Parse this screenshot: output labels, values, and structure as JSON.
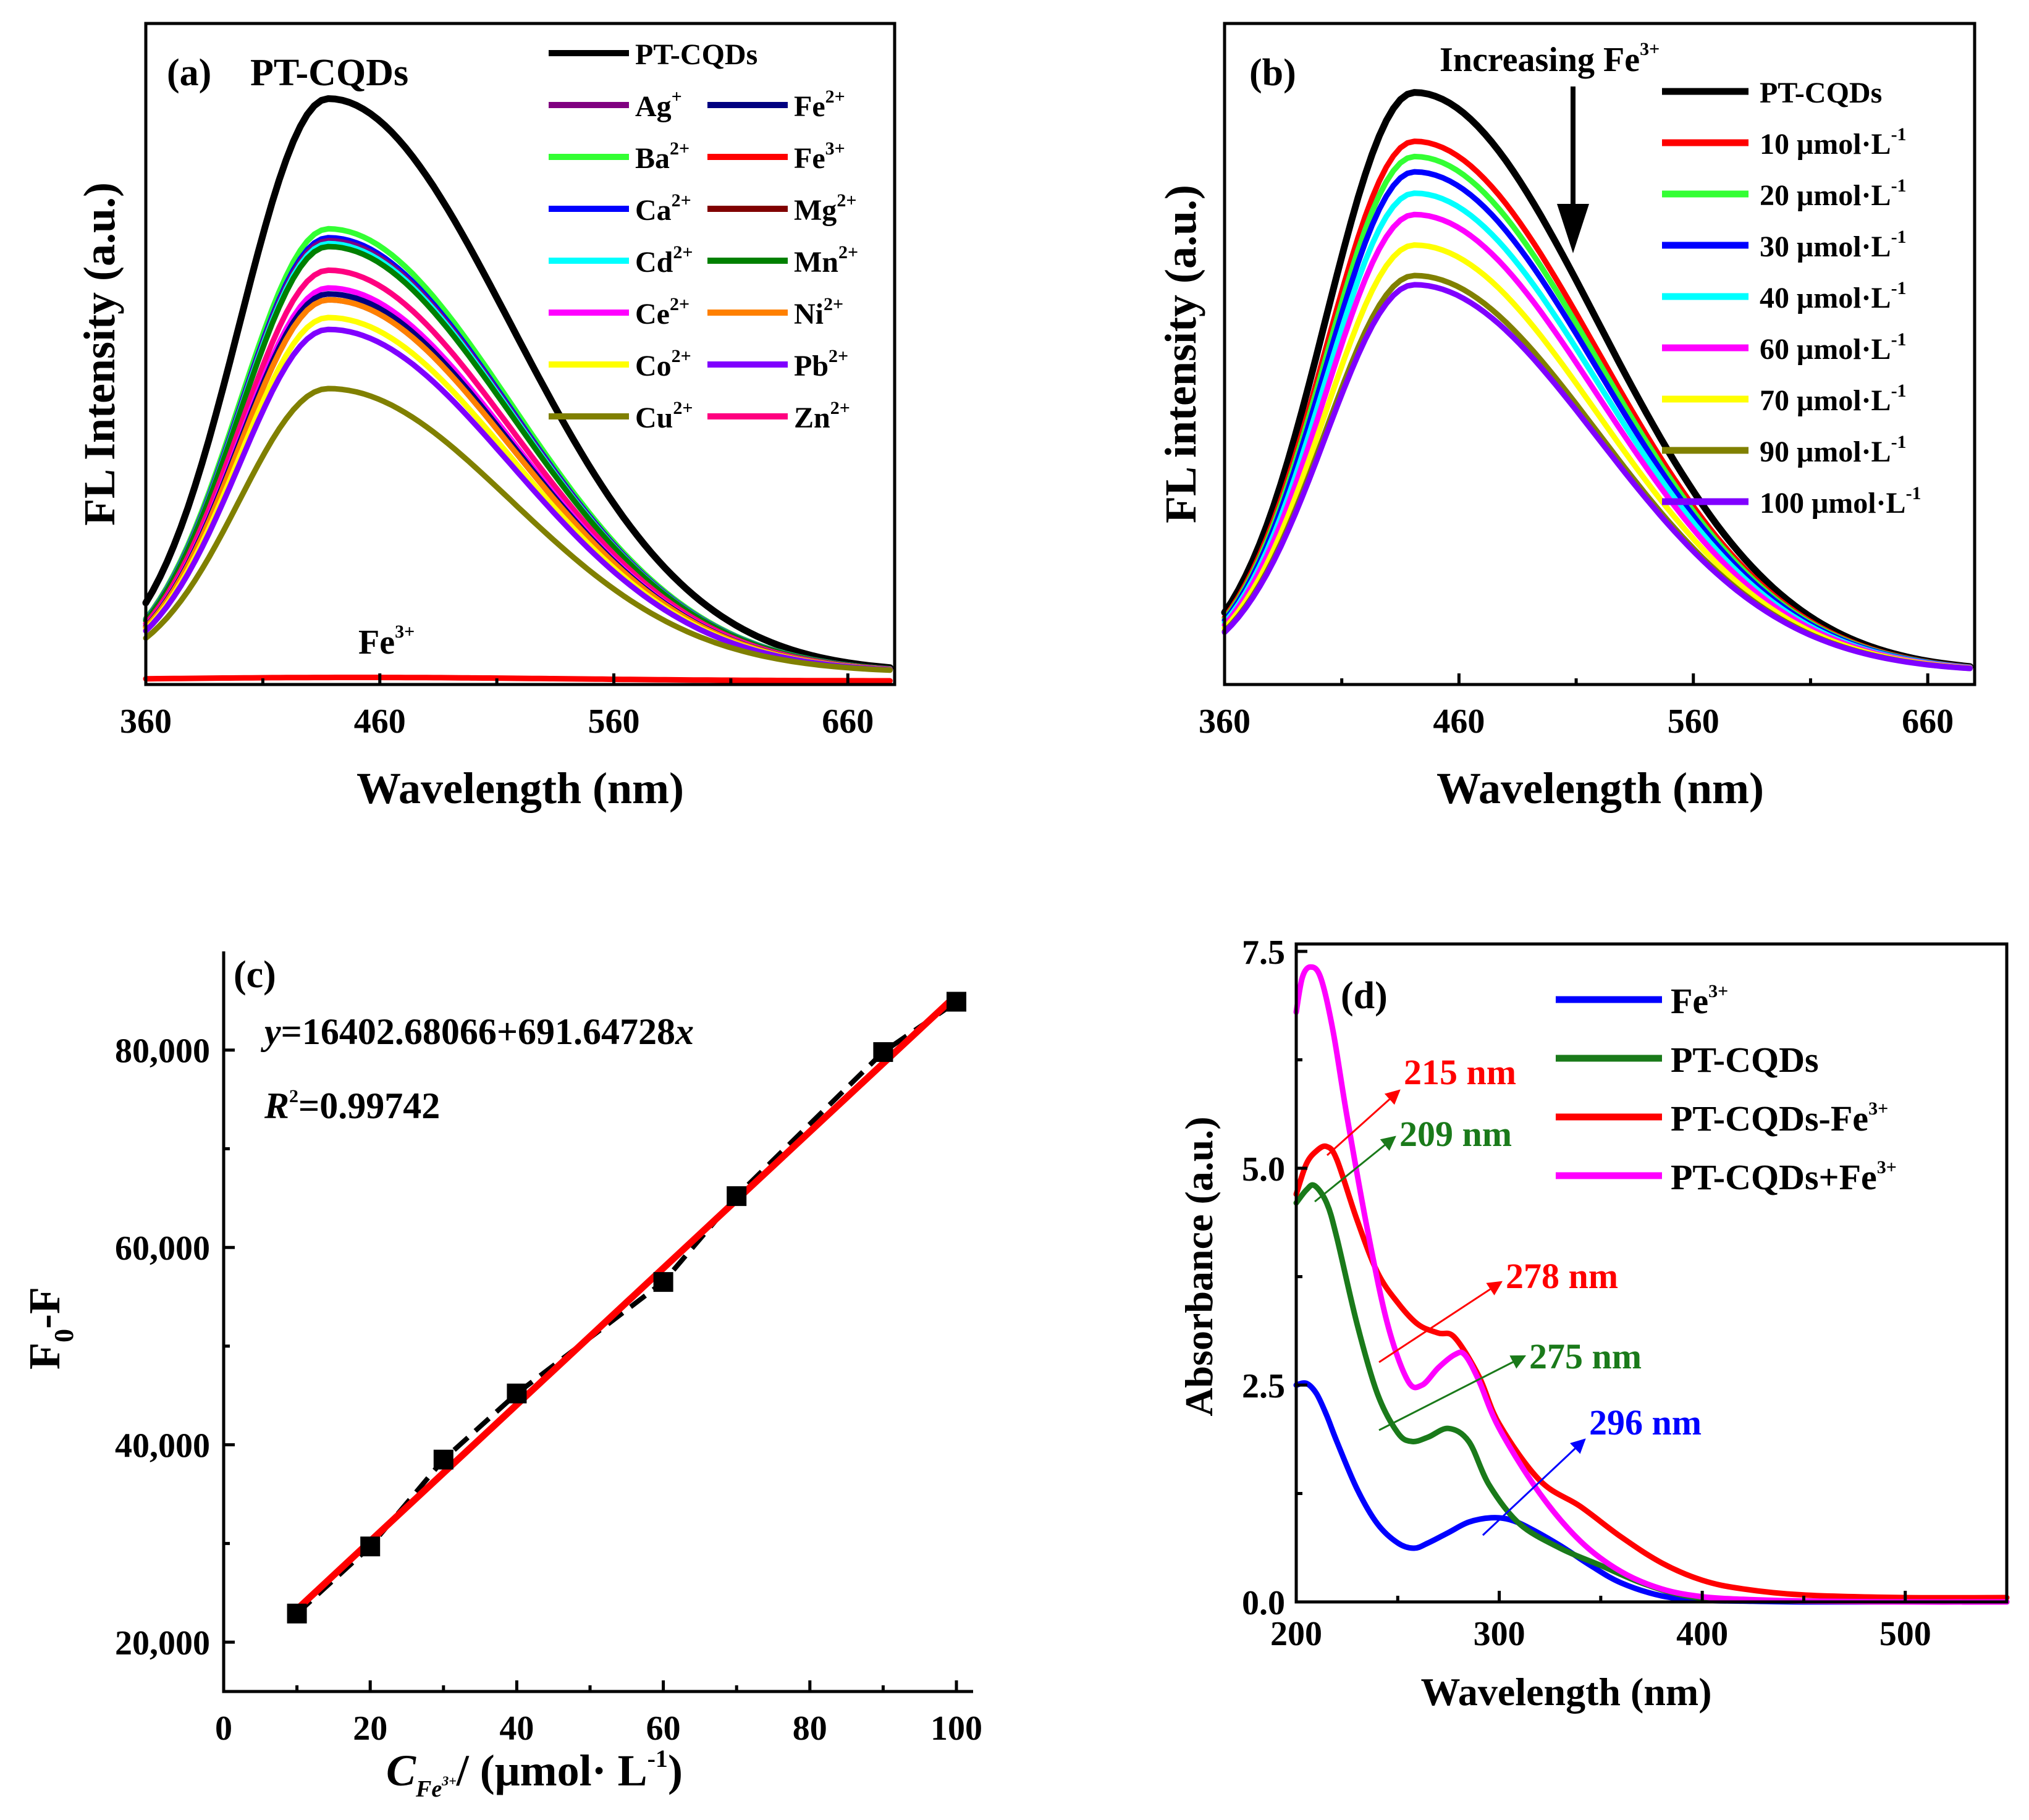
{
  "chart_data": [
    {
      "panel": "(a)",
      "type": "line",
      "title": "PT-CQDs",
      "xlabel": "Wavelength (nm)",
      "ylabel": "FL Intensity (a.u.)",
      "xlim": [
        360,
        680
      ],
      "ylim": [
        0,
        1.0
      ],
      "xticks": [
        "360",
        "460",
        "560",
        "660"
      ],
      "annotation": {
        "text": "Fe",
        "sup": "3+",
        "x": 462,
        "y": 0.06
      },
      "legend_columns": 2,
      "legend_rows": [
        [
          "PT-CQDs"
        ],
        [
          "Ag+",
          "Fe2+"
        ],
        [
          "Ba2+",
          "Fe3+"
        ],
        [
          "Ca2+",
          "Mg2+"
        ],
        [
          "Cd2+",
          "Mn2+"
        ],
        [
          "Ce2+",
          "Ni2+"
        ],
        [
          "Co2+",
          "Pb2+"
        ],
        [
          "Cu2+",
          "Zn2+"
        ]
      ],
      "series": [
        {
          "name": "PT-CQDs",
          "label": "PT-CQDs",
          "sup": "",
          "color": "#000000",
          "peak": 0.99,
          "peak_x": 438
        },
        {
          "name": "Ag+",
          "label": "Ag",
          "sup": "+",
          "color": "#800080",
          "peak": 0.75,
          "peak_x": 438
        },
        {
          "name": "Fe2+",
          "label": "Fe",
          "sup": "2+",
          "color": "#000080",
          "peak": 0.66,
          "peak_x": 438
        },
        {
          "name": "Ba2+",
          "label": "Ba",
          "sup": "2+",
          "color": "#33ff33",
          "peak": 0.77,
          "peak_x": 438
        },
        {
          "name": "Fe3+",
          "label": "Fe",
          "sup": "3+",
          "color": "#ff0000",
          "peak": 0.008,
          "peak_x": 450
        },
        {
          "name": "Ca2+",
          "label": "Ca",
          "sup": "2+",
          "color": "#0000ff",
          "peak": 0.755,
          "peak_x": 438
        },
        {
          "name": "Mg2+",
          "label": "Mg",
          "sup": "2+",
          "color": "#800000",
          "peak": 0.65,
          "peak_x": 438
        },
        {
          "name": "Cd2+",
          "label": "Cd",
          "sup": "2+",
          "color": "#00ffff",
          "peak": 0.745,
          "peak_x": 438
        },
        {
          "name": "Mn2+",
          "label": "Mn",
          "sup": "2+",
          "color": "#008000",
          "peak": 0.74,
          "peak_x": 438
        },
        {
          "name": "Ce2+",
          "label": "Ce",
          "sup": "2+",
          "color": "#ff00ff",
          "peak": 0.67,
          "peak_x": 438
        },
        {
          "name": "Ni2+",
          "label": "Ni",
          "sup": "2+",
          "color": "#ff8000",
          "peak": 0.65,
          "peak_x": 438
        },
        {
          "name": "Co2+",
          "label": "Co",
          "sup": "2+",
          "color": "#ffff00",
          "peak": 0.62,
          "peak_x": 438
        },
        {
          "name": "Pb2+",
          "label": "Pb",
          "sup": "2+",
          "color": "#8000ff",
          "peak": 0.6,
          "peak_x": 438
        },
        {
          "name": "Cu2+",
          "label": "Cu",
          "sup": "2+",
          "color": "#808000",
          "peak": 0.5,
          "peak_x": 438
        },
        {
          "name": "Zn2+",
          "label": "Zn",
          "sup": "2+",
          "color": "#ff0080",
          "peak": 0.7,
          "peak_x": 438
        }
      ]
    },
    {
      "panel": "(b)",
      "type": "line",
      "xlabel": "Wavelength (nm)",
      "ylabel": "FL intensity (a.u.)",
      "xlim": [
        360,
        680
      ],
      "ylim": [
        0,
        1.0
      ],
      "xticks": [
        "360",
        "460",
        "560",
        "660"
      ],
      "annotation": {
        "text": "Increasing Fe",
        "sup": "3+"
      },
      "series": [
        {
          "name": "PT-CQDs",
          "label": "PT-CQDs",
          "unit": "",
          "color": "#000000",
          "peak": 0.97,
          "peak_x": 441
        },
        {
          "name": "10 μmol·L-1",
          "label": "10 μmol·L",
          "unit": "-1",
          "color": "#ff0000",
          "peak": 0.89,
          "peak_x": 441
        },
        {
          "name": "20 μmol·L-1",
          "label": "20 μmol·L",
          "unit": "-1",
          "color": "#33ff33",
          "peak": 0.865,
          "peak_x": 441
        },
        {
          "name": "30 μmol·L-1",
          "label": "30 μmol·L",
          "unit": "-1",
          "color": "#0000ff",
          "peak": 0.84,
          "peak_x": 441
        },
        {
          "name": "40 μmol·L-1",
          "label": "40 μmol·L",
          "unit": "-1",
          "color": "#00ffff",
          "peak": 0.805,
          "peak_x": 441
        },
        {
          "name": "60 μmol·L-1",
          "label": "60 μmol·L",
          "unit": "-1",
          "color": "#ff00ff",
          "peak": 0.77,
          "peak_x": 441
        },
        {
          "name": "70 μmol·L-1",
          "label": "70 μmol·L",
          "unit": "-1",
          "color": "#ffff00",
          "peak": 0.72,
          "peak_x": 441
        },
        {
          "name": "90 μmol·L-1",
          "label": "90 μmol·L",
          "unit": "-1",
          "color": "#808000",
          "peak": 0.67,
          "peak_x": 441
        },
        {
          "name": "100 μmol·L-1",
          "label": "100 μmol·L",
          "unit": "-1",
          "color": "#8000ff",
          "peak": 0.655,
          "peak_x": 441
        }
      ]
    },
    {
      "panel": "(c)",
      "type": "scatter",
      "xlabel_main": "C",
      "xlabel_sub": "Fe",
      "xlabel_subsup": "3+",
      "xlabel_rest": "/ (μmol· L",
      "xlabel_sup": "-1",
      "xlabel_end": ")",
      "ylabel_main": "F",
      "ylabel_sub": "0",
      "ylabel_rest": "-F",
      "xlim": [
        0,
        100
      ],
      "ylim": [
        15000,
        90000
      ],
      "xticks": [
        "0",
        "20",
        "40",
        "60",
        "80",
        "100"
      ],
      "yticks": [
        "20,000",
        "40,000",
        "60,000",
        "80,000"
      ],
      "x": [
        10,
        20,
        30,
        40,
        60,
        70,
        90,
        100
      ],
      "y": [
        22900,
        29700,
        38500,
        45200,
        56500,
        65200,
        79800,
        84900
      ],
      "fit": {
        "slope": 691.64728,
        "intercept": 16402.68066,
        "color": "#ff0000"
      },
      "equation_y": "y",
      "equation_rest": "=16402.68066+691.64728",
      "equation_x": "x",
      "r2_label": "R",
      "r2_sup": "2",
      "r2_value": "=0.99742"
    },
    {
      "panel": "(d)",
      "type": "line",
      "xlabel": "Wavelength (nm)",
      "ylabel": "Absorbance (a.u.)",
      "xlim": [
        200,
        550
      ],
      "ylim": [
        0,
        7.5
      ],
      "xticks": [
        "200",
        "300",
        "400",
        "500"
      ],
      "yticks": [
        "0.0",
        "2.5",
        "5.0",
        "7.5"
      ],
      "series": [
        {
          "name": "Fe3+",
          "label": "Fe",
          "sup": "3+",
          "color": "#0000ff",
          "x": [
            200,
            205,
            210,
            215,
            220,
            230,
            240,
            250,
            258,
            265,
            275,
            285,
            296,
            305,
            315,
            330,
            345,
            360,
            380,
            400,
            420,
            450,
            500,
            550
          ],
          "y": [
            2.5,
            2.52,
            2.4,
            2.15,
            1.85,
            1.3,
            0.9,
            0.68,
            0.62,
            0.68,
            0.8,
            0.92,
            0.97,
            0.95,
            0.85,
            0.65,
            0.42,
            0.22,
            0.07,
            0.02,
            0.01,
            0.0,
            0.0,
            0.0
          ]
        },
        {
          "name": "PT-CQDs",
          "label": "PT-CQDs",
          "sup": "",
          "color": "#1a7a1a",
          "x": [
            200,
            205,
            209,
            215,
            220,
            230,
            240,
            250,
            257,
            265,
            275,
            285,
            295,
            310,
            330,
            350,
            370,
            390,
            410,
            450,
            500,
            550
          ],
          "y": [
            4.6,
            4.75,
            4.8,
            4.6,
            4.2,
            3.2,
            2.4,
            1.95,
            1.85,
            1.9,
            2.0,
            1.85,
            1.35,
            0.9,
            0.62,
            0.42,
            0.22,
            0.08,
            0.03,
            0.01,
            0.0,
            0.0
          ]
        },
        {
          "name": "PT-CQDs-Fe3+",
          "label": "PT-CQDs-Fe",
          "sup": "3+",
          "color": "#ff0000",
          "x": [
            200,
            205,
            210,
            215,
            220,
            230,
            240,
            250,
            260,
            270,
            278,
            290,
            300,
            320,
            340,
            360,
            380,
            400,
            420,
            450,
            500,
            550
          ],
          "y": [
            4.7,
            5.05,
            5.2,
            5.25,
            5.1,
            4.4,
            3.8,
            3.45,
            3.2,
            3.1,
            3.05,
            2.6,
            2.05,
            1.4,
            1.1,
            0.75,
            0.45,
            0.25,
            0.15,
            0.08,
            0.05,
            0.05
          ]
        },
        {
          "name": "PT-CQDs+Fe3+",
          "label": "PT-CQDs+Fe",
          "sup": "3+",
          "color": "#ff00ff",
          "x": [
            200,
            203,
            207,
            212,
            218,
            225,
            235,
            245,
            255,
            262,
            270,
            278,
            283,
            290,
            300,
            320,
            340,
            360,
            380,
            400,
            420,
            450,
            500,
            550
          ],
          "y": [
            6.8,
            7.2,
            7.32,
            7.2,
            6.6,
            5.6,
            4.3,
            3.2,
            2.55,
            2.5,
            2.7,
            2.85,
            2.85,
            2.55,
            2.0,
            1.25,
            0.7,
            0.35,
            0.15,
            0.06,
            0.03,
            0.01,
            0.0,
            0.0
          ]
        }
      ],
      "annotations": [
        {
          "text": "215 nm",
          "color": "#ff0000"
        },
        {
          "text": "209 nm",
          "color": "#1a7a1a"
        },
        {
          "text": "278 nm",
          "color": "#ff0000"
        },
        {
          "text": "275 nm",
          "color": "#1a7a1a"
        },
        {
          "text": "296 nm",
          "color": "#0000ff"
        }
      ]
    }
  ]
}
